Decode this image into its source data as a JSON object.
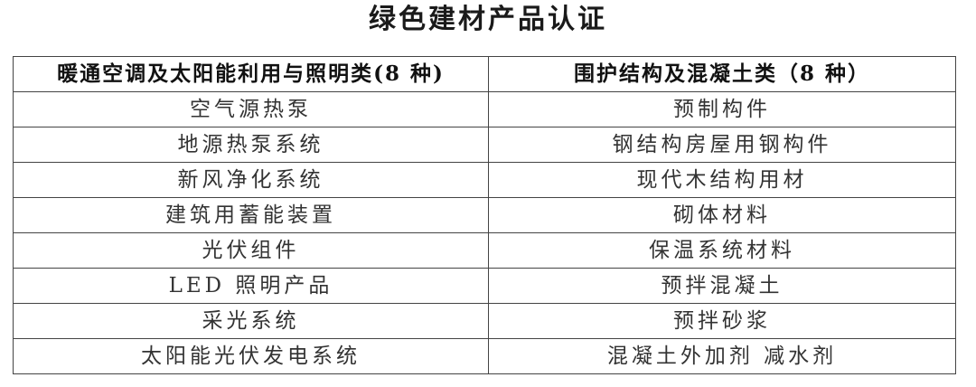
{
  "title": "绿色建材产品认证",
  "table": {
    "headers": [
      "暖通空调及太阳能利用与照明类(8 种)",
      "围护结构及混凝土类（8 种）"
    ],
    "rows": [
      [
        "空气源热泵",
        "预制构件"
      ],
      [
        "地源热泵系统",
        "钢结构房屋用钢构件"
      ],
      [
        "新风净化系统",
        "现代木结构用材"
      ],
      [
        "建筑用蓄能装置",
        "砌体材料"
      ],
      [
        "光伏组件",
        "保温系统材料"
      ],
      [
        "LED 照明产品",
        "预拌混凝土"
      ],
      [
        "采光系统",
        "预拌砂浆"
      ],
      [
        "太阳能光伏发电系统",
        "混凝土外加剂 减水剂"
      ]
    ]
  }
}
